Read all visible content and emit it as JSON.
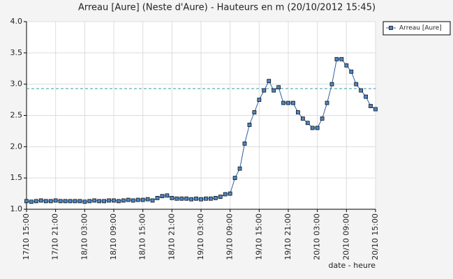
{
  "chart_data": {
    "type": "line",
    "title": "Arreau [Aure] (Neste d'Aure) - Hauteurs en m (20/10/2012 15:45)",
    "xlabel": "date - heure",
    "x": [
      "17/10 15:00",
      "17/10 16:00",
      "17/10 17:00",
      "17/10 18:00",
      "17/10 19:00",
      "17/10 20:00",
      "17/10 21:00",
      "17/10 22:00",
      "17/10 23:00",
      "18/10 00:00",
      "18/10 01:00",
      "18/10 02:00",
      "18/10 03:00",
      "18/10 04:00",
      "18/10 05:00",
      "18/10 06:00",
      "18/10 07:00",
      "18/10 08:00",
      "18/10 09:00",
      "18/10 10:00",
      "18/10 11:00",
      "18/10 12:00",
      "18/10 13:00",
      "18/10 14:00",
      "18/10 15:00",
      "18/10 16:00",
      "18/10 17:00",
      "18/10 18:00",
      "18/10 19:00",
      "18/10 20:00",
      "18/10 21:00",
      "18/10 22:00",
      "18/10 23:00",
      "19/10 00:00",
      "19/10 01:00",
      "19/10 02:00",
      "19/10 03:00",
      "19/10 04:00",
      "19/10 05:00",
      "19/10 06:00",
      "19/10 07:00",
      "19/10 08:00",
      "19/10 09:00",
      "19/10 10:00",
      "19/10 11:00",
      "19/10 12:00",
      "19/10 13:00",
      "19/10 14:00",
      "19/10 15:00",
      "19/10 16:00",
      "19/10 17:00",
      "19/10 18:00",
      "19/10 19:00",
      "19/10 20:00",
      "19/10 21:00",
      "19/10 22:00",
      "19/10 23:00",
      "20/10 00:00",
      "20/10 01:00",
      "20/10 02:00",
      "20/10 03:00",
      "20/10 04:00",
      "20/10 05:00",
      "20/10 06:00",
      "20/10 07:00",
      "20/10 08:00",
      "20/10 09:00",
      "20/10 10:00",
      "20/10 11:00",
      "20/10 12:00",
      "20/10 13:00",
      "20/10 14:00",
      "20/10 15:00"
    ],
    "series": [
      {
        "name": "Arreau [Aure]",
        "color": "#2f5f9e",
        "marker_color": "#4a86c8",
        "values": [
          1.13,
          1.12,
          1.13,
          1.14,
          1.13,
          1.13,
          1.14,
          1.13,
          1.13,
          1.13,
          1.13,
          1.13,
          1.12,
          1.13,
          1.14,
          1.13,
          1.13,
          1.14,
          1.14,
          1.13,
          1.14,
          1.15,
          1.14,
          1.15,
          1.15,
          1.16,
          1.14,
          1.18,
          1.21,
          1.22,
          1.18,
          1.17,
          1.17,
          1.17,
          1.16,
          1.17,
          1.16,
          1.17,
          1.17,
          1.18,
          1.2,
          1.24,
          1.25,
          1.5,
          1.65,
          2.05,
          2.35,
          2.55,
          2.75,
          2.9,
          3.05,
          2.9,
          2.95,
          2.7,
          2.7,
          2.7,
          2.55,
          2.45,
          2.38,
          2.3,
          2.3,
          2.45,
          2.7,
          3.0,
          3.4,
          3.4,
          3.3,
          3.2,
          3.0,
          2.9,
          2.8,
          2.65,
          2.6
        ]
      }
    ],
    "reference_line": {
      "value": 2.93,
      "color": "#3399aa"
    },
    "xlim": [
      "17/10 15:00",
      "20/10 15:00"
    ],
    "xticks": [
      "17/10 15:00",
      "17/10 21:00",
      "18/10 03:00",
      "18/10 09:00",
      "18/10 15:00",
      "18/10 21:00",
      "19/10 03:00",
      "19/10 09:00",
      "19/10 15:00",
      "19/10 21:00",
      "20/10 03:00",
      "20/10 09:00",
      "20/10 15:00"
    ],
    "ylim": [
      1,
      4
    ],
    "yticks": [
      {
        "value": 1,
        "label": "1.0"
      },
      {
        "value": 1.5,
        "label": "1.5"
      },
      {
        "value": 2,
        "label": "2.0"
      },
      {
        "value": 2.5,
        "label": "2.5"
      },
      {
        "value": 3,
        "label": "3.0"
      },
      {
        "value": 3.5,
        "label": "3.5"
      },
      {
        "value": 4,
        "label": "4.0"
      }
    ],
    "grid": true,
    "legend": "top-right"
  }
}
